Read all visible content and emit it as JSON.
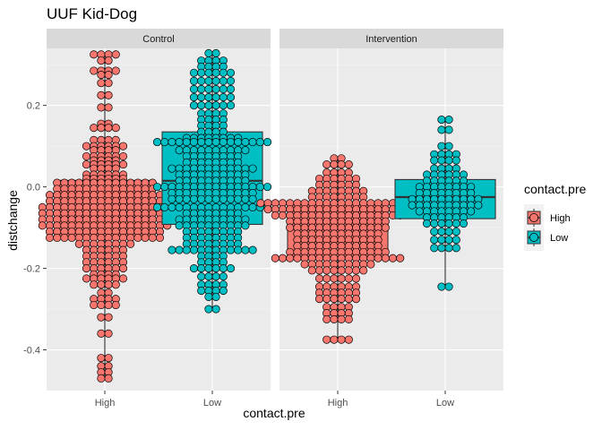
{
  "chart_data": {
    "type": "box-dotplot",
    "title": "UUF Kid-Dog",
    "xlabel": "contact.pre",
    "ylabel": "distchange",
    "ylim": [
      -0.5,
      0.34
    ],
    "yticks": [
      -0.4,
      -0.2,
      0.0,
      0.2
    ],
    "ytick_labels": [
      "-0.4",
      "-0.2",
      "0.0",
      "0.2"
    ],
    "categories": [
      "High",
      "Low"
    ],
    "grid": true,
    "legend": {
      "title": "contact.pre",
      "position": "right",
      "entries": [
        {
          "name": "High",
          "color": "#F8766D"
        },
        {
          "name": "Low",
          "color": "#00BFC4"
        }
      ]
    },
    "panels": [
      {
        "name": "Control",
        "groups": [
          {
            "category": "High",
            "color": "#F8766D",
            "box": {
              "min": -0.47,
              "q1": -0.127,
              "median": -0.076,
              "q3": 0.016,
              "max": 0.325
            },
            "dots": [
              {
                "y": 0.325,
                "n": 4
              },
              {
                "y": 0.31,
                "n": 2
              },
              {
                "y": 0.285,
                "n": 4
              },
              {
                "y": 0.275,
                "n": 2
              },
              {
                "y": 0.255,
                "n": 2
              },
              {
                "y": 0.225,
                "n": 2
              },
              {
                "y": 0.195,
                "n": 2
              },
              {
                "y": 0.155,
                "n": 2
              },
              {
                "y": 0.145,
                "n": 4
              },
              {
                "y": 0.115,
                "n": 4
              },
              {
                "y": 0.1,
                "n": 6
              },
              {
                "y": 0.09,
                "n": 4
              },
              {
                "y": 0.075,
                "n": 6
              },
              {
                "y": 0.065,
                "n": 4
              },
              {
                "y": 0.055,
                "n": 6
              },
              {
                "y": 0.045,
                "n": 4
              },
              {
                "y": 0.03,
                "n": 6
              },
              {
                "y": 0.02,
                "n": 6
              },
              {
                "y": 0.01,
                "n": 14
              },
              {
                "y": -0.005,
                "n": 14
              },
              {
                "y": -0.02,
                "n": 16
              },
              {
                "y": -0.035,
                "n": 16
              },
              {
                "y": -0.05,
                "n": 18
              },
              {
                "y": -0.065,
                "n": 18
              },
              {
                "y": -0.08,
                "n": 18
              },
              {
                "y": -0.095,
                "n": 18
              },
              {
                "y": -0.11,
                "n": 16
              },
              {
                "y": -0.125,
                "n": 16
              },
              {
                "y": -0.14,
                "n": 8
              },
              {
                "y": -0.155,
                "n": 6
              },
              {
                "y": -0.17,
                "n": 6
              },
              {
                "y": -0.185,
                "n": 6
              },
              {
                "y": -0.2,
                "n": 6
              },
              {
                "y": -0.215,
                "n": 4
              },
              {
                "y": -0.225,
                "n": 6
              },
              {
                "y": -0.24,
                "n": 4
              },
              {
                "y": -0.26,
                "n": 2
              },
              {
                "y": -0.275,
                "n": 4
              },
              {
                "y": -0.29,
                "n": 4
              },
              {
                "y": -0.32,
                "n": 2
              },
              {
                "y": -0.36,
                "n": 2
              },
              {
                "y": -0.42,
                "n": 2
              },
              {
                "y": -0.44,
                "n": 2
              },
              {
                "y": -0.455,
                "n": 2
              },
              {
                "y": -0.47,
                "n": 2
              }
            ]
          },
          {
            "category": "Low",
            "color": "#00BFC4",
            "box": {
              "min": -0.3,
              "q1": -0.092,
              "median": 0.015,
              "q3": 0.135,
              "max": 0.328
            },
            "dots": [
              {
                "y": 0.328,
                "n": 2
              },
              {
                "y": 0.31,
                "n": 4
              },
              {
                "y": 0.295,
                "n": 4
              },
              {
                "y": 0.28,
                "n": 6
              },
              {
                "y": 0.26,
                "n": 6
              },
              {
                "y": 0.24,
                "n": 6
              },
              {
                "y": 0.22,
                "n": 6
              },
              {
                "y": 0.2,
                "n": 6
              },
              {
                "y": 0.18,
                "n": 4
              },
              {
                "y": 0.165,
                "n": 4
              },
              {
                "y": 0.15,
                "n": 4
              },
              {
                "y": 0.135,
                "n": 4
              },
              {
                "y": 0.12,
                "n": 8
              },
              {
                "y": 0.11,
                "n": 16
              },
              {
                "y": 0.09,
                "n": 10
              },
              {
                "y": 0.075,
                "n": 8
              },
              {
                "y": 0.06,
                "n": 8
              },
              {
                "y": 0.045,
                "n": 12
              },
              {
                "y": 0.03,
                "n": 10
              },
              {
                "y": 0.015,
                "n": 10
              },
              {
                "y": 0.0,
                "n": 16
              },
              {
                "y": -0.015,
                "n": 12
              },
              {
                "y": -0.03,
                "n": 12
              },
              {
                "y": -0.05,
                "n": 16
              },
              {
                "y": -0.065,
                "n": 8
              },
              {
                "y": -0.08,
                "n": 10
              },
              {
                "y": -0.095,
                "n": 10
              },
              {
                "y": -0.11,
                "n": 8
              },
              {
                "y": -0.125,
                "n": 8
              },
              {
                "y": -0.14,
                "n": 8
              },
              {
                "y": -0.155,
                "n": 12
              },
              {
                "y": -0.17,
                "n": 4
              },
              {
                "y": -0.185,
                "n": 4
              },
              {
                "y": -0.2,
                "n": 6
              },
              {
                "y": -0.22,
                "n": 4
              },
              {
                "y": -0.24,
                "n": 4
              },
              {
                "y": -0.255,
                "n": 4
              },
              {
                "y": -0.27,
                "n": 2
              },
              {
                "y": -0.3,
                "n": 2
              }
            ]
          }
        ]
      },
      {
        "name": "Intervention",
        "groups": [
          {
            "category": "High",
            "color": "#F8766D",
            "box": {
              "min": -0.375,
              "q1": -0.178,
              "median": -0.085,
              "q3": -0.04,
              "max": 0.07
            },
            "dots": [
              {
                "y": 0.07,
                "n": 2
              },
              {
                "y": 0.055,
                "n": 4
              },
              {
                "y": 0.035,
                "n": 4
              },
              {
                "y": 0.02,
                "n": 6
              },
              {
                "y": 0.005,
                "n": 6
              },
              {
                "y": -0.01,
                "n": 8
              },
              {
                "y": -0.025,
                "n": 8
              },
              {
                "y": -0.04,
                "n": 22
              },
              {
                "y": -0.055,
                "n": 20
              },
              {
                "y": -0.07,
                "n": 18
              },
              {
                "y": -0.085,
                "n": 14
              },
              {
                "y": -0.1,
                "n": 14
              },
              {
                "y": -0.115,
                "n": 12
              },
              {
                "y": -0.13,
                "n": 12
              },
              {
                "y": -0.145,
                "n": 12
              },
              {
                "y": -0.16,
                "n": 14
              },
              {
                "y": -0.175,
                "n": 18
              },
              {
                "y": -0.19,
                "n": 10
              },
              {
                "y": -0.205,
                "n": 8
              },
              {
                "y": -0.225,
                "n": 6
              },
              {
                "y": -0.245,
                "n": 6
              },
              {
                "y": -0.26,
                "n": 6
              },
              {
                "y": -0.275,
                "n": 6
              },
              {
                "y": -0.295,
                "n": 4
              },
              {
                "y": -0.31,
                "n": 4
              },
              {
                "y": -0.325,
                "n": 4
              },
              {
                "y": -0.375,
                "n": 4
              }
            ]
          },
          {
            "category": "Low",
            "color": "#00BFC4",
            "box": {
              "min": -0.245,
              "q1": -0.078,
              "median": -0.025,
              "q3": 0.018,
              "max": 0.165
            },
            "dots": [
              {
                "y": 0.165,
                "n": 2
              },
              {
                "y": 0.14,
                "n": 2
              },
              {
                "y": 0.1,
                "n": 2
              },
              {
                "y": 0.08,
                "n": 4
              },
              {
                "y": 0.065,
                "n": 4
              },
              {
                "y": 0.045,
                "n": 4
              },
              {
                "y": 0.03,
                "n": 6
              },
              {
                "y": 0.015,
                "n": 6
              },
              {
                "y": 0.0,
                "n": 8
              },
              {
                "y": -0.015,
                "n": 8
              },
              {
                "y": -0.03,
                "n": 10
              },
              {
                "y": -0.045,
                "n": 10
              },
              {
                "y": -0.06,
                "n": 8
              },
              {
                "y": -0.075,
                "n": 6
              },
              {
                "y": -0.09,
                "n": 6
              },
              {
                "y": -0.11,
                "n": 4
              },
              {
                "y": -0.13,
                "n": 4
              },
              {
                "y": -0.15,
                "n": 4
              },
              {
                "y": -0.245,
                "n": 2
              }
            ]
          }
        ]
      }
    ]
  }
}
